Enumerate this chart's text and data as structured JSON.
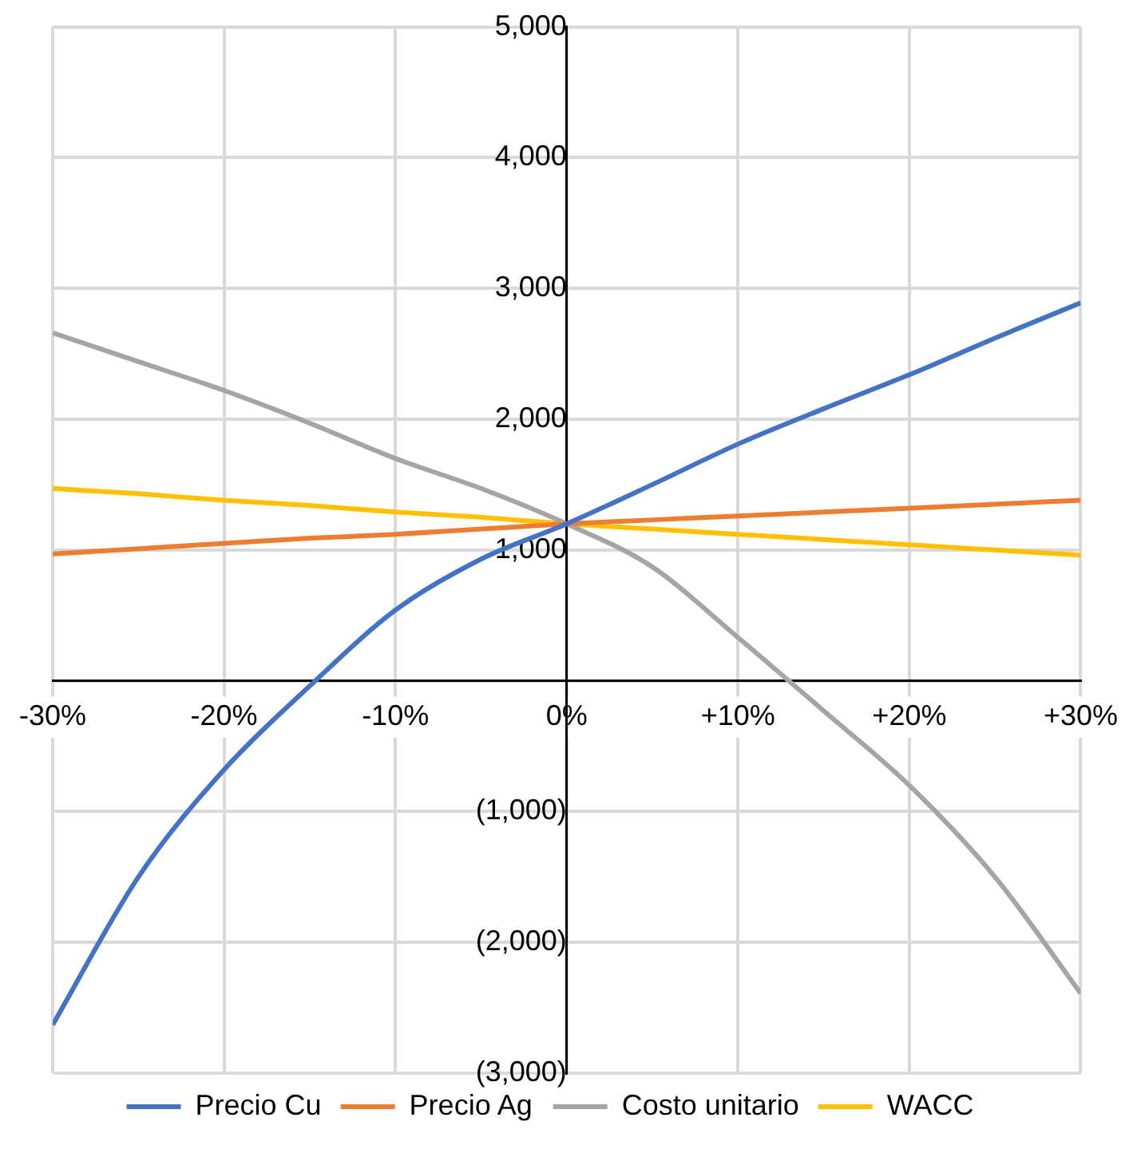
{
  "chart_data": {
    "type": "line",
    "x": [
      -30,
      -25,
      -20,
      -15,
      -10,
      -5,
      0,
      5,
      10,
      15,
      20,
      25,
      30
    ],
    "series": [
      {
        "name": "Precio Cu",
        "color": "#4472c4",
        "values": [
          -2630,
          -1500,
          -680,
          -40,
          540,
          930,
          1200,
          1500,
          1810,
          2080,
          2340,
          2620,
          2890
        ]
      },
      {
        "name": "Precio Ag",
        "color": "#ed7d31",
        "values": [
          970,
          1010,
          1050,
          1090,
          1120,
          1160,
          1200,
          1230,
          1260,
          1290,
          1320,
          1350,
          1380
        ]
      },
      {
        "name": "Costo unitario",
        "color": "#a5a5a5",
        "values": [
          2660,
          2440,
          2220,
          1970,
          1700,
          1470,
          1200,
          870,
          330,
          -230,
          -800,
          -1500,
          -2390
        ]
      },
      {
        "name": "WACC",
        "color": "#ffc000",
        "values": [
          1470,
          1430,
          1380,
          1340,
          1290,
          1250,
          1200,
          1160,
          1120,
          1080,
          1040,
          1000,
          960
        ]
      }
    ],
    "xlim": [
      -30,
      30
    ],
    "xticks": [
      {
        "value": -30,
        "label": "-30%"
      },
      {
        "value": -20,
        "label": "-20%"
      },
      {
        "value": -10,
        "label": "-10%"
      },
      {
        "value": 0,
        "label": "0%"
      },
      {
        "value": 10,
        "label": "+10%"
      },
      {
        "value": 20,
        "label": "+20%"
      },
      {
        "value": 30,
        "label": "+30%"
      }
    ],
    "ylim": [
      -3000,
      5000
    ],
    "yticks": [
      {
        "value": -3000,
        "label": "(3,000)"
      },
      {
        "value": -2000,
        "label": "(2,000)"
      },
      {
        "value": -1000,
        "label": "(1,000)"
      },
      {
        "value": 0,
        "label": null
      },
      {
        "value": 1000,
        "label": "1,000"
      },
      {
        "value": 2000,
        "label": "2,000"
      },
      {
        "value": 3000,
        "label": "3,000"
      },
      {
        "value": 4000,
        "label": "4,000"
      },
      {
        "value": 5000,
        "label": "5,000"
      }
    ],
    "grid": true,
    "legend": "bottom",
    "marker": "none",
    "line_style": "solid"
  }
}
